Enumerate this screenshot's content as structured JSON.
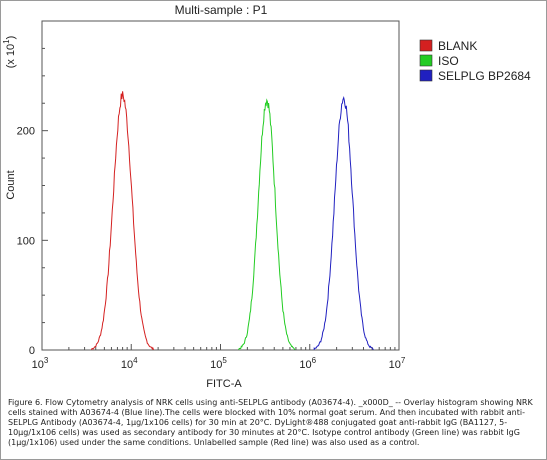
{
  "chart_data": {
    "type": "histogram",
    "title": "Multi-sample : P1",
    "xlabel": "FITC-A",
    "ylabel": "Count",
    "y_multiplier": "(x 10",
    "y_multiplier_exp": "1",
    "y_multiplier_close": ")",
    "x_scale": "log",
    "xlim": [
      1000,
      10000000
    ],
    "ylim": [
      0,
      300
    ],
    "y_ticks": [
      0,
      100,
      200
    ],
    "x_ticks": [
      {
        "value": 1000,
        "base": "10",
        "exp": "3"
      },
      {
        "value": 10000,
        "base": "10",
        "exp": "4"
      },
      {
        "value": 100000,
        "base": "10",
        "exp": "5"
      },
      {
        "value": 1000000,
        "base": "10",
        "exp": "6"
      },
      {
        "value": 10000000,
        "base": "10",
        "exp": "7"
      }
    ],
    "legend_position": "right",
    "series": [
      {
        "name": "BLANK",
        "color": "#d42020",
        "peak_x": 8000,
        "peak_y": 232,
        "sigma_log": 0.105
      },
      {
        "name": "ISO",
        "color": "#22cc22",
        "peak_x": 330000,
        "peak_y": 228,
        "sigma_log": 0.095
      },
      {
        "name": "SELPLG BP2684",
        "color": "#2020c0",
        "peak_x": 2400000,
        "peak_y": 230,
        "sigma_log": 0.1
      }
    ]
  },
  "caption": "Figure 6. Flow Cytometry analysis of NRK cells using anti-SELPLG antibody (A03674-4). _x000D_ -- Overlay histogram showing NRK cells stained with A03674-4 (Blue line).The cells were blocked with 10% normal goat serum. And then incubated with rabbit anti-SELPLG Antibody (A03674-4, 1µg/1x106 cells) for 30 min at 20°C. DyLight®488 conjugated goat anti-rabbit IgG (BA1127, 5-10µg/1x106 cells) was used as secondary antibody for 30 minutes at 20°C. Isotype control antibody (Green line) was rabbit IgG (1µg/1x106) used under the same conditions. Unlabelled sample (Red line) was also used as a control."
}
